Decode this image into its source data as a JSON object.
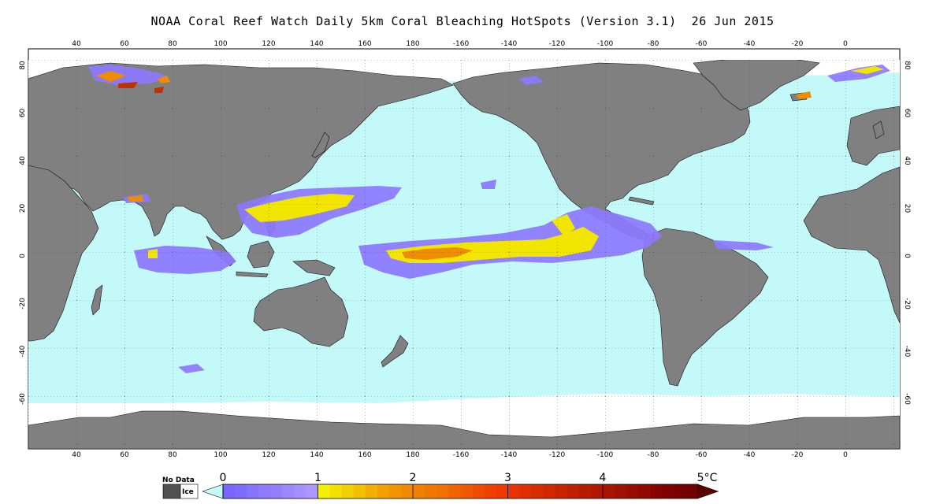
{
  "title": "NOAA Coral Reef Watch Daily 5km Coral Bleaching HotSpots (Version 3.1)  26 Jun 2015",
  "map": {
    "lon_ticks_top": [
      "40",
      "60",
      "80",
      "100",
      "120",
      "140",
      "160",
      "180",
      "-160",
      "-140",
      "-120",
      "-100",
      "-80",
      "-60",
      "-40",
      "-20",
      "0"
    ],
    "lon_ticks_bottom": [
      "40",
      "60",
      "80",
      "100",
      "120",
      "140",
      "160",
      "180",
      "-160",
      "-140",
      "-120",
      "-100",
      "-80",
      "-60",
      "-40",
      "-20",
      "0"
    ],
    "lat_ticks_left": [
      "80",
      "60",
      "40",
      "20",
      "0",
      "-20",
      "-40",
      "-60"
    ],
    "lat_ticks_right": [
      "80",
      "60",
      "40",
      "20",
      "0",
      "-20",
      "-40",
      "-60"
    ],
    "colors": {
      "land": "#808080",
      "ocean": "#c4f9f9",
      "ice": "#ffffff",
      "hotspot_low": "#8c78ff",
      "hotspot_mid": "#f2e600",
      "hotspot_high": "#f08c00"
    }
  },
  "colorbar": {
    "no_data_label": "No Data",
    "ice_label": "Ice",
    "labels": [
      "0",
      "1",
      "2",
      "3",
      "4",
      "5°C"
    ],
    "unit": "°C",
    "range": [
      0,
      5
    ]
  }
}
